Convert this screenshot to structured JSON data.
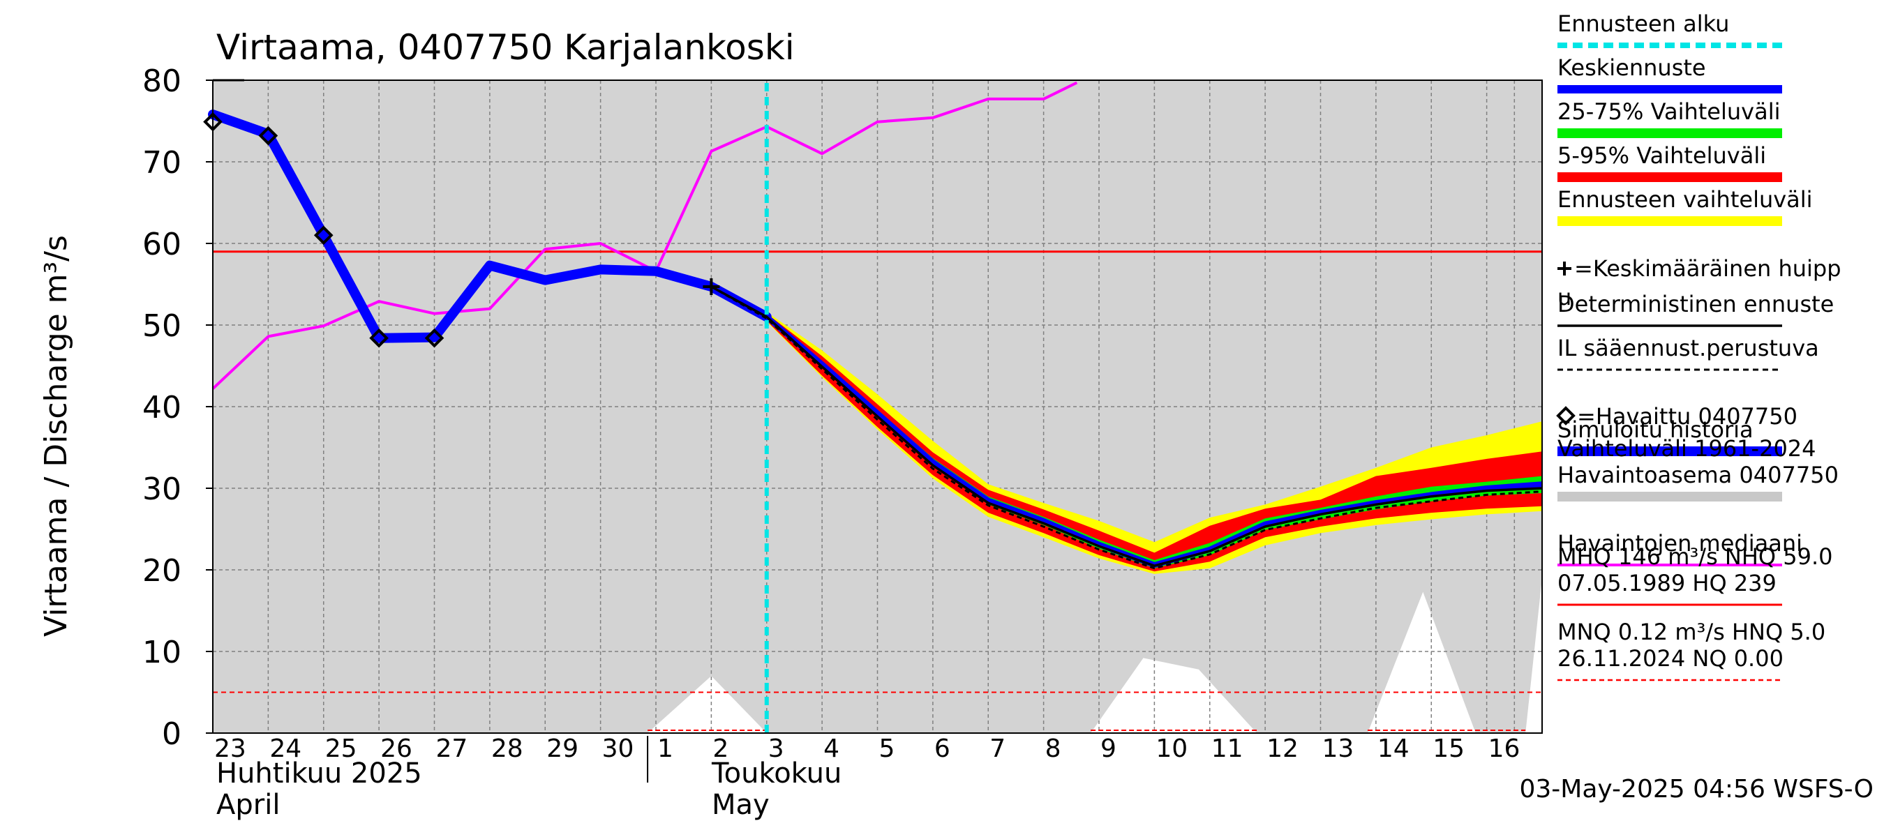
{
  "colors": {
    "plot_bg": "#d3d3d3",
    "grid": "#808080",
    "forecast_start": "#00e5e5",
    "mean_forecast": "#0000ff",
    "band_25_75": "#00ee00",
    "band_5_95": "#ff0000",
    "band_full": "#ffff00",
    "deterministic": "#000000",
    "il_forecast": "#000000",
    "simulated_history": "#0000ff",
    "history_range": "#c8c8c8",
    "median": "#ff00ff",
    "mhq_line": "#ff0000",
    "mnq_line": "#ff0000"
  },
  "chart_data": {
    "type": "line",
    "title": "Virtaama, 0407750 Karjalankoski",
    "ylabel": "Virtaama / Discharge    m³/s",
    "ylim": [
      0,
      80
    ],
    "yticks": [
      0,
      10,
      20,
      30,
      40,
      50,
      60,
      70,
      80
    ],
    "xlim": [
      0,
      24
    ],
    "x_ticks": [
      {
        "x": 0,
        "label": "23"
      },
      {
        "x": 1,
        "label": "24"
      },
      {
        "x": 2,
        "label": "25"
      },
      {
        "x": 3,
        "label": "26"
      },
      {
        "x": 4,
        "label": "27"
      },
      {
        "x": 5,
        "label": "28"
      },
      {
        "x": 6,
        "label": "29"
      },
      {
        "x": 7,
        "label": "30"
      },
      {
        "x": 8,
        "label": "1"
      },
      {
        "x": 9,
        "label": "2"
      },
      {
        "x": 10,
        "label": "3"
      },
      {
        "x": 11,
        "label": "4"
      },
      {
        "x": 12,
        "label": "5"
      },
      {
        "x": 13,
        "label": "6"
      },
      {
        "x": 14,
        "label": "7"
      },
      {
        "x": 15,
        "label": "8"
      },
      {
        "x": 16,
        "label": "9"
      },
      {
        "x": 17,
        "label": "10"
      },
      {
        "x": 18,
        "label": "11"
      },
      {
        "x": 19,
        "label": "12"
      },
      {
        "x": 20,
        "label": "13"
      },
      {
        "x": 21,
        "label": "14"
      },
      {
        "x": 22,
        "label": "15"
      },
      {
        "x": 23,
        "label": "16"
      }
    ],
    "month_labels": {
      "april_fi": "Huhtikuu  2025",
      "april_en": "April",
      "may_fi": "Toukokuu",
      "may_en": "May"
    },
    "forecast_start_x": 10,
    "reference_lines": {
      "MHQ_NHQ": 59.0,
      "MNQ_HNQ": 5.0
    },
    "history_range": {
      "upper": [
        [
          7.85,
          0
        ],
        [
          9,
          7
        ],
        [
          10,
          0
        ],
        [
          15.85,
          0
        ],
        [
          16.8,
          9.2
        ],
        [
          17.8,
          7.8
        ],
        [
          18.85,
          0
        ],
        [
          20.85,
          0
        ],
        [
          21.85,
          17.3
        ],
        [
          22.8,
          0
        ],
        [
          23.7,
          0
        ],
        [
          24,
          19
        ]
      ],
      "lower": [
        [
          7.85,
          0
        ],
        [
          24,
          0
        ]
      ]
    },
    "series": [
      {
        "name": "Havaintojen mediaani",
        "x": [
          0,
          1,
          2,
          3,
          4,
          5,
          6,
          7,
          8,
          9,
          10,
          11,
          12,
          13,
          14,
          15,
          15.6
        ],
        "values": [
          42.2,
          48.6,
          49.9,
          52.9,
          51.4,
          52.0,
          59.3,
          60.0,
          56.6,
          71.3,
          74.3,
          71.0,
          74.9,
          75.4,
          77.7,
          77.7,
          79.7
        ]
      },
      {
        "name": "Simuloitu historia",
        "x": [
          0,
          1,
          2,
          3,
          4,
          5,
          6,
          7,
          8,
          9,
          10
        ],
        "values": [
          75.8,
          73.4,
          61.0,
          48.4,
          48.5,
          57.3,
          55.5,
          56.8,
          56.6,
          54.7,
          51.0
        ]
      },
      {
        "name": "Havaittu 0407750",
        "x": [
          0,
          1,
          2,
          3,
          4
        ],
        "values": [
          74.9,
          73.2,
          61.0,
          48.4,
          48.4
        ]
      },
      {
        "name": "Keskiennuste",
        "x": [
          9,
          10,
          11,
          12,
          13,
          14,
          15,
          16,
          17,
          18,
          19,
          20,
          21,
          22,
          23,
          24
        ],
        "values": [
          54.7,
          51.0,
          45.2,
          39.2,
          33.2,
          28.5,
          26.0,
          23.1,
          20.6,
          22.5,
          25.6,
          27.0,
          28.2,
          29.2,
          30.0,
          30.5
        ]
      },
      {
        "name": "Deterministinen ennuste",
        "x": [
          9,
          10,
          11,
          12,
          13,
          14,
          15,
          16,
          17,
          18,
          19,
          20,
          21,
          22,
          23,
          24
        ],
        "values": [
          54.7,
          51.0,
          44.9,
          38.8,
          32.8,
          28.2,
          25.7,
          22.9,
          20.5,
          22.3,
          25.3,
          26.8,
          28.0,
          29.0,
          29.7,
          30.0
        ]
      },
      {
        "name": "IL sääennust.perustuva",
        "x": [
          9,
          10,
          11,
          12,
          13,
          14,
          15,
          16,
          17,
          18,
          19,
          20,
          21,
          22,
          23,
          24
        ],
        "values": [
          54.7,
          50.8,
          44.6,
          38.4,
          32.4,
          27.9,
          25.3,
          22.5,
          20.2,
          21.9,
          24.9,
          26.3,
          27.6,
          28.4,
          29.2,
          29.6
        ]
      }
    ],
    "bands": [
      {
        "name": "Ennusteen vaihteluväli",
        "x": [
          10,
          11,
          12,
          13,
          14,
          15,
          16,
          17,
          18,
          19,
          20,
          21,
          22,
          23,
          24
        ],
        "lower": [
          50.4,
          43.6,
          37.2,
          31.2,
          26.5,
          24.0,
          21.4,
          19.5,
          20.2,
          23.0,
          24.5,
          25.5,
          26.2,
          26.8,
          27.2
        ],
        "upper": [
          51.6,
          46.9,
          41.5,
          35.8,
          30.5,
          28.2,
          26.0,
          23.4,
          26.4,
          28.0,
          30.2,
          32.5,
          35.0,
          36.5,
          38.2
        ]
      },
      {
        "name": "5-95% Vaihteluväli",
        "x": [
          10,
          11,
          12,
          13,
          14,
          15,
          16,
          17,
          18,
          19,
          20,
          21,
          22,
          23,
          24
        ],
        "lower": [
          50.5,
          43.8,
          37.5,
          31.6,
          27.0,
          24.5,
          21.8,
          19.8,
          21.0,
          24.0,
          25.3,
          26.3,
          27.0,
          27.5,
          27.8
        ],
        "upper": [
          51.4,
          46.2,
          40.3,
          34.4,
          29.8,
          27.4,
          24.8,
          22.1,
          25.4,
          27.5,
          28.6,
          31.5,
          32.5,
          33.6,
          34.5
        ]
      },
      {
        "name": "25-75% Vaihteluväli",
        "x": [
          10,
          11,
          12,
          13,
          14,
          15,
          16,
          17,
          18,
          19,
          20,
          21,
          22,
          23,
          24
        ],
        "lower": [
          50.9,
          44.9,
          38.8,
          32.8,
          28.0,
          25.5,
          22.6,
          20.2,
          21.8,
          24.9,
          26.2,
          27.4,
          28.4,
          29.1,
          29.4
        ],
        "upper": [
          51.1,
          45.6,
          39.6,
          33.7,
          29.0,
          26.5,
          23.7,
          21.2,
          23.3,
          26.3,
          27.6,
          29.0,
          30.2,
          30.8,
          31.5
        ]
      }
    ],
    "legend": {
      "placement": "right",
      "items": [
        {
          "label": "Ennusteen alku"
        },
        {
          "label": "Keskiennuste"
        },
        {
          "label": "25-75% Vaihteluväli"
        },
        {
          "label": "5-95% Vaihteluväli"
        },
        {
          "label": "Ennusteen vaihteluväli"
        },
        {
          "label": "=Keskimääräinen huipp",
          "label2": "u"
        },
        {
          "label": "Deterministinen ennuste"
        },
        {
          "label": "IL sääennust.perustuva"
        },
        {
          "label": "=Havaittu 0407750"
        },
        {
          "label": "Simuloitu historia"
        },
        {
          "label": "Vaihteluväli 1961-2024",
          "label2": " Havaintoasema 0407750"
        },
        {
          "label": "Havaintojen mediaani"
        },
        {
          "label": "MHQ  146 m³/s NHQ 59.0",
          "label2": "07.05.1989 HQ  239"
        },
        {
          "label": "MNQ 0.12 m³/s HNQ  5.0",
          "label2": "26.11.2024 NQ 0.00"
        }
      ]
    },
    "timestamp": "03-May-2025 04:56 WSFS-O"
  }
}
